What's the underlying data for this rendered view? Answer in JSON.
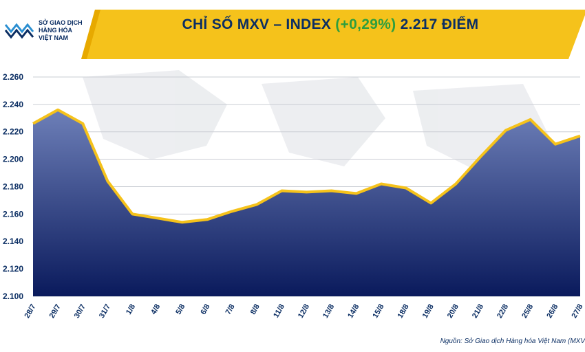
{
  "header": {
    "logo_lines": [
      "SỞ GIAO DỊCH",
      "HÀNG HÓA",
      "VIỆT NAM"
    ],
    "title_prefix": "CHỈ SỐ MXV – INDEX ",
    "title_change": "(+0,29%)",
    "title_suffix": " 2.217 ĐIỂM"
  },
  "source_note": "Nguồn: Sở Giao dịch Hàng hóa Việt Nam (MXV",
  "colors": {
    "header_yellow": "#f5c21b",
    "title_navy": "#0b2e63",
    "change_green": "#2e9e3e",
    "line_yellow": "#f5c21b",
    "area_top": "#6d7fb8",
    "area_bottom": "#0a1a5c"
  },
  "chart_data": {
    "type": "area",
    "categories": [
      "28/7",
      "29/7",
      "30/7",
      "31/7",
      "1/8",
      "4/8",
      "5/8",
      "6/8",
      "7/8",
      "8/8",
      "11/8",
      "12/8",
      "13/8",
      "14/8",
      "15/8",
      "18/8",
      "19/8",
      "20/8",
      "21/8",
      "22/8",
      "25/8",
      "26/8",
      "27/8"
    ],
    "values": [
      2226,
      2236,
      2226,
      2184,
      2160,
      2157,
      2154,
      2156,
      2162,
      2167,
      2177,
      2176,
      2177,
      2175,
      2182,
      2179,
      2168,
      2182,
      2202,
      2221,
      2229,
      2211,
      2217
    ],
    "ylim": [
      2100,
      2270
    ],
    "yticks": [
      2100,
      2120,
      2140,
      2160,
      2180,
      2200,
      2220,
      2240,
      2260
    ],
    "ytick_labels": [
      "2.100",
      "2.120",
      "2.140",
      "2.160",
      "2.180",
      "2.200",
      "2.220",
      "2.240",
      "2.260"
    ],
    "grid": true
  }
}
